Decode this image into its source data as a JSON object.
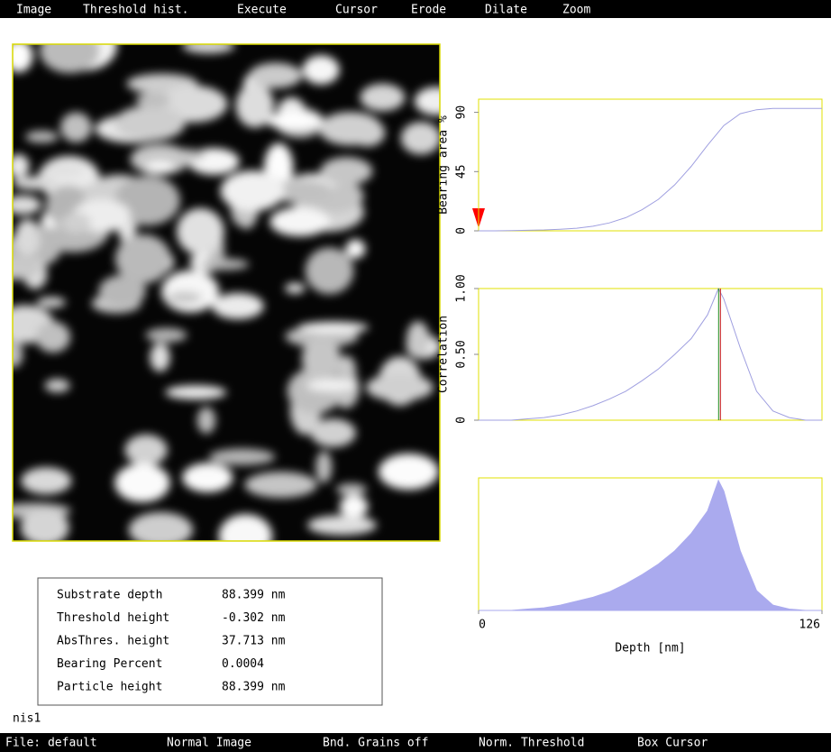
{
  "menu": [
    "Image",
    "Threshold hist.",
    "Execute",
    "Cursor",
    "Erode",
    "Dilate",
    "Zoom"
  ],
  "info": {
    "rows": [
      [
        "Substrate depth",
        "88.399 nm"
      ],
      [
        "Threshold height",
        "-0.302 nm"
      ],
      [
        "AbsThres. height",
        "37.713 nm"
      ],
      [
        "Bearing Percent",
        "0.0004"
      ],
      [
        "Particle height",
        "88.399 nm"
      ]
    ]
  },
  "filename": "nis1",
  "status": [
    "File: default",
    "Normal Image",
    "Bnd. Grains off",
    "Norm. Threshold",
    "Box Cursor"
  ],
  "chart_data": [
    {
      "type": "line",
      "ylabel": "Bearing area %",
      "color": "#9f9fe0",
      "x": [
        0,
        6,
        12,
        18,
        24,
        30,
        36,
        42,
        48,
        54,
        60,
        66,
        72,
        78,
        84,
        90,
        96,
        102,
        108,
        114,
        120,
        126
      ],
      "values": [
        0,
        0,
        0.2,
        0.4,
        0.7,
        1.2,
        2,
        3.5,
        6,
        10,
        16,
        24,
        35,
        49,
        65,
        80,
        89,
        92,
        93,
        93,
        93,
        93
      ],
      "xlim": [
        0,
        126
      ],
      "ylim": [
        0,
        100
      ],
      "yticks": [
        0,
        45,
        90
      ]
    },
    {
      "type": "line",
      "ylabel": "Correlation",
      "color": "#9f9fe0",
      "x": [
        0,
        6,
        12,
        18,
        24,
        30,
        36,
        42,
        48,
        54,
        60,
        66,
        72,
        78,
        84,
        88,
        90,
        96,
        102,
        108,
        114,
        120,
        126
      ],
      "values": [
        0,
        0,
        0,
        0.01,
        0.02,
        0.04,
        0.07,
        0.11,
        0.16,
        0.22,
        0.3,
        0.39,
        0.5,
        0.62,
        0.8,
        1.0,
        0.92,
        0.55,
        0.22,
        0.07,
        0.02,
        0,
        0
      ],
      "cursor": 88.399,
      "xlim": [
        0,
        126
      ],
      "ylim": [
        0,
        1
      ],
      "yticks": [
        0,
        {
          "value": 0.5,
          "label": "0.50"
        },
        {
          "value": 1,
          "label": "1.00"
        }
      ]
    },
    {
      "type": "area",
      "xlabel": "Depth [nm]",
      "color": "#aaaaee",
      "x": [
        0,
        6,
        12,
        18,
        24,
        30,
        36,
        42,
        48,
        54,
        60,
        66,
        72,
        78,
        84,
        88,
        90,
        96,
        102,
        108,
        114,
        120,
        126
      ],
      "values": [
        0,
        0,
        0,
        0.01,
        0.02,
        0.04,
        0.07,
        0.1,
        0.14,
        0.2,
        0.27,
        0.35,
        0.45,
        0.58,
        0.75,
        0.98,
        0.9,
        0.45,
        0.15,
        0.04,
        0.01,
        0,
        0
      ],
      "xlim": [
        0,
        126
      ],
      "ylim": [
        0,
        1
      ],
      "xticks": [
        0,
        126
      ]
    }
  ]
}
